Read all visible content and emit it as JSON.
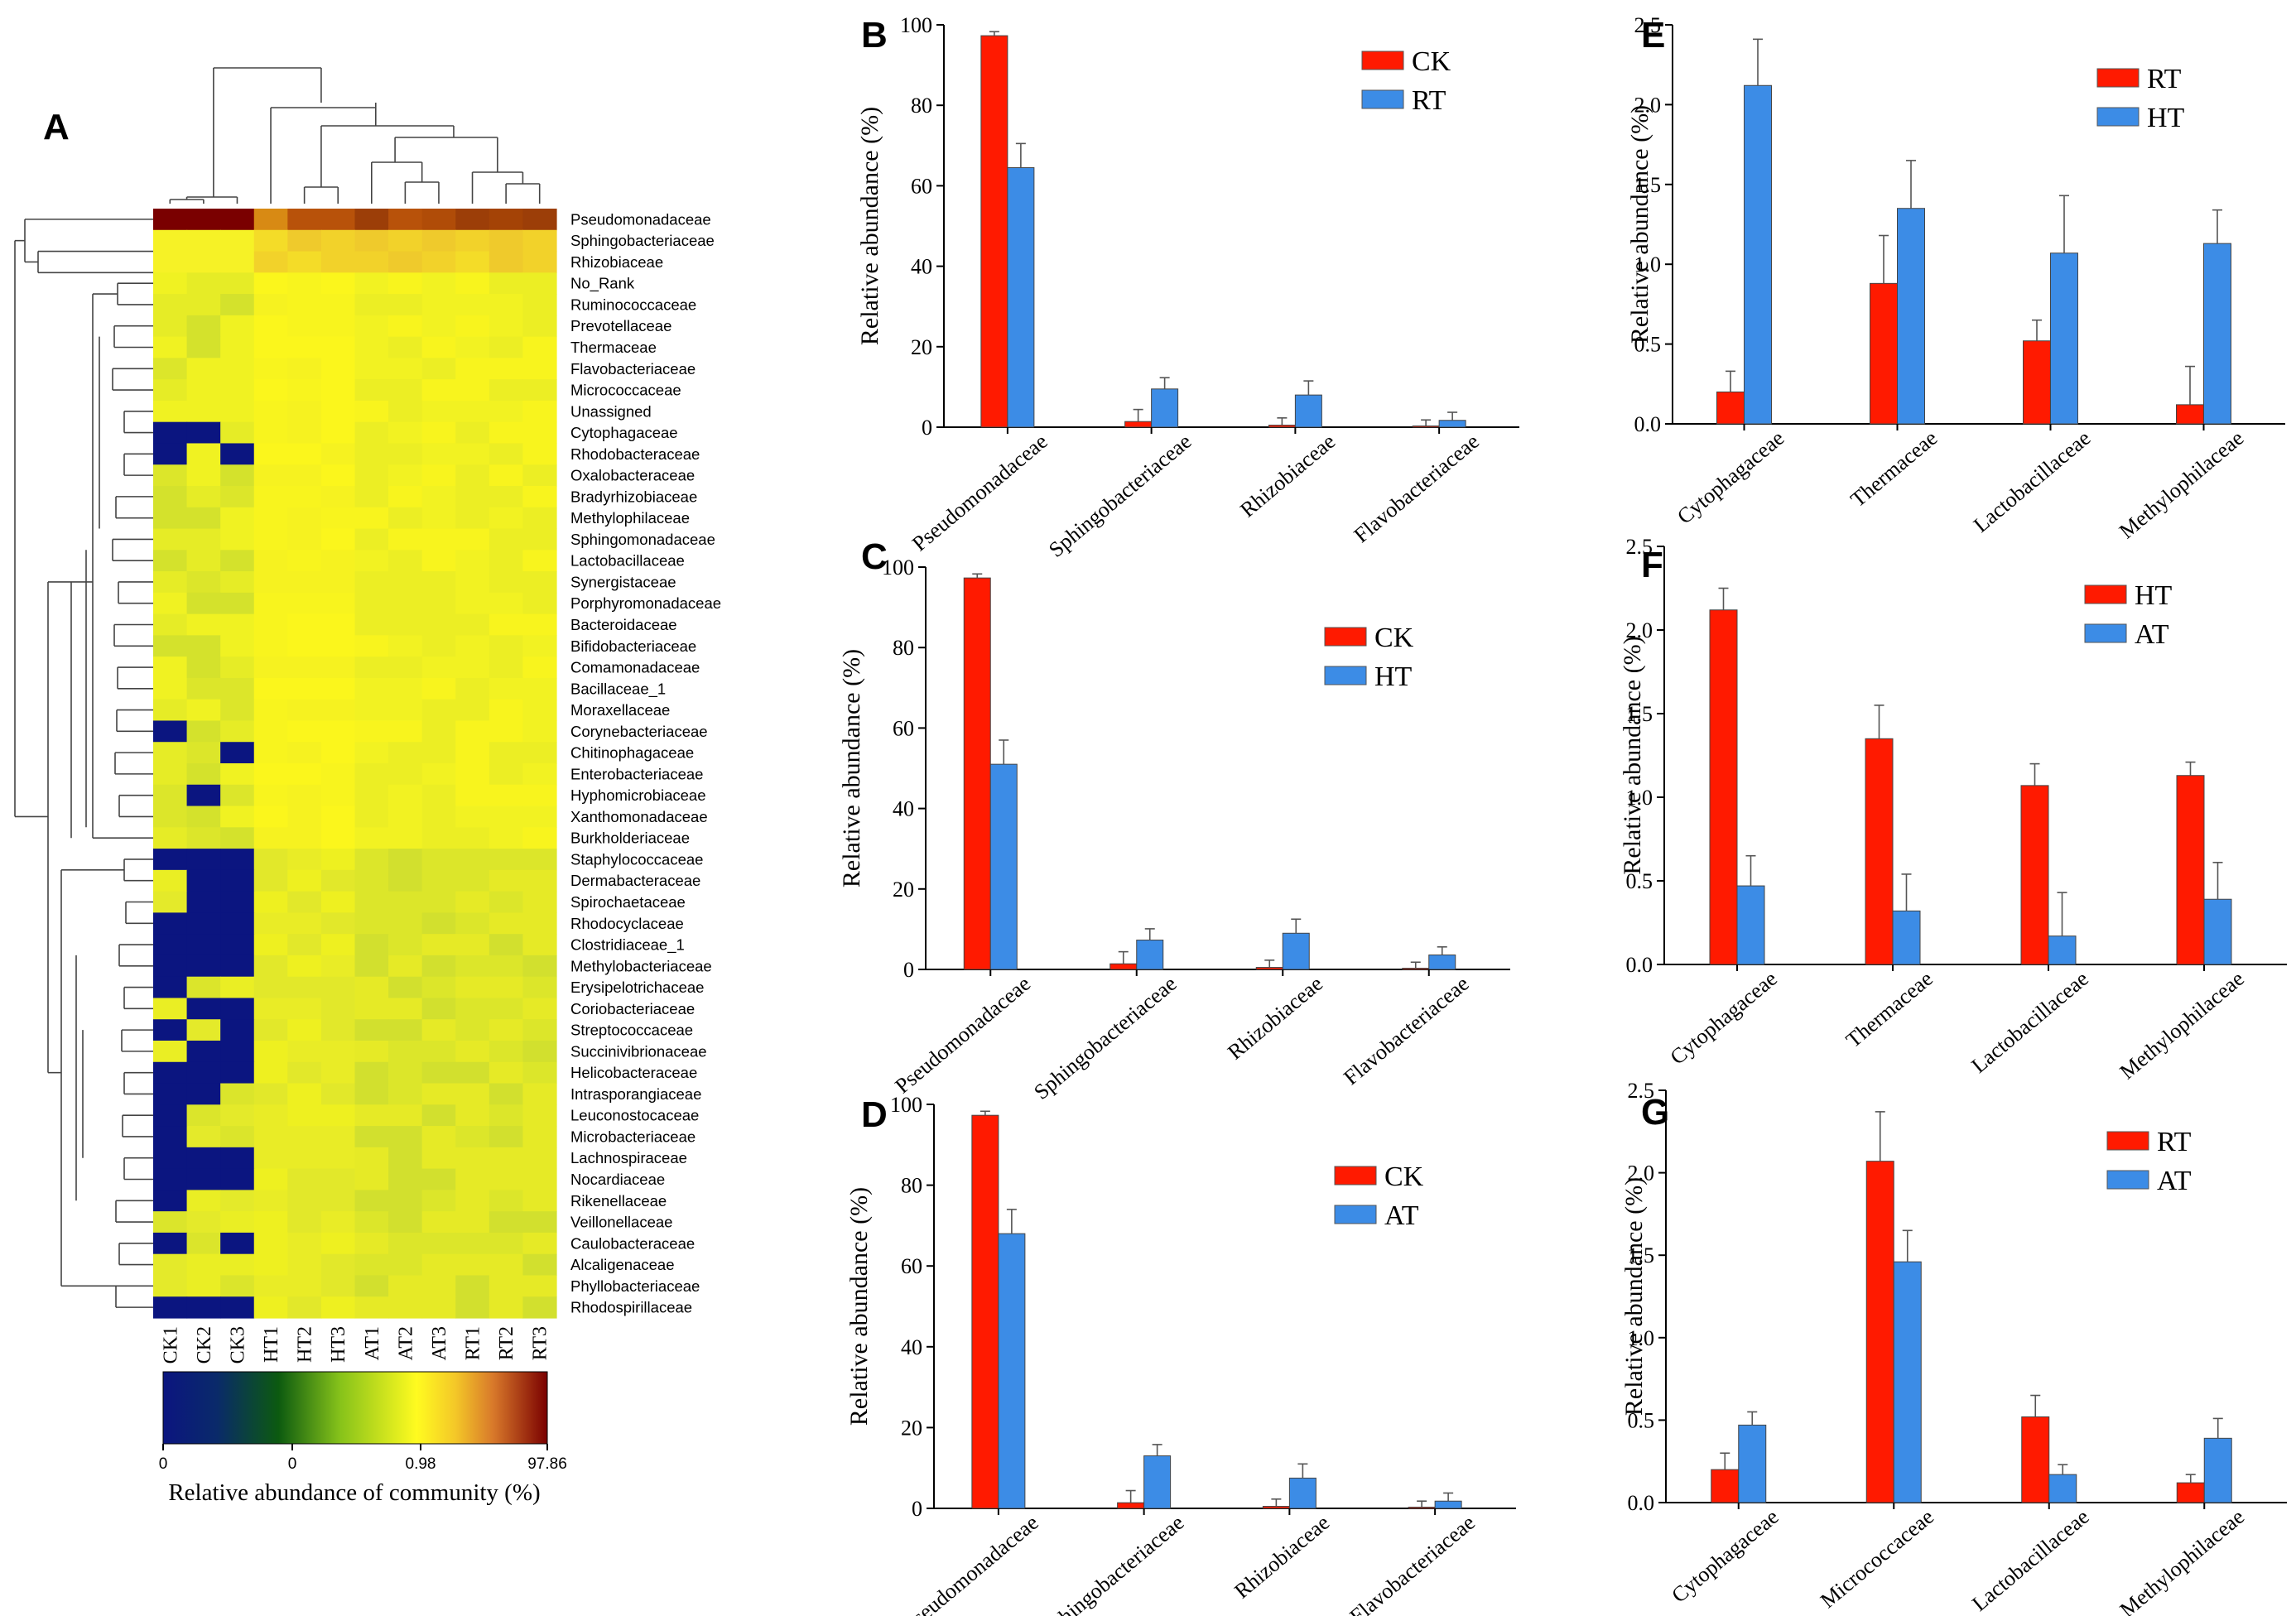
{
  "heatmap": {
    "letter": "A",
    "samples": [
      "CK1",
      "CK2",
      "CK3",
      "HT1",
      "HT2",
      "HT3",
      "AT1",
      "AT2",
      "AT3",
      "RT1",
      "RT2",
      "RT3"
    ],
    "families": [
      "Pseudomonadaceae",
      "Sphingobacteriaceae",
      "Rhizobiaceae",
      "No_Rank",
      "Ruminococcaceae",
      "Prevotellaceae",
      "Thermaceae",
      "Flavobacteriaceae",
      "Micrococcaceae",
      "Unassigned",
      "Cytophagaceae",
      "Rhodobacteraceae",
      "Oxalobacteraceae",
      "Bradyrhizobiaceae",
      "Methylophilaceae",
      "Sphingomonadaceae",
      "Lactobacillaceae",
      "Synergistaceae",
      "Porphyromonadaceae",
      "Bacteroidaceae",
      "Bifidobacteriaceae",
      "Comamonadaceae",
      "Bacillaceae_1",
      "Moraxellaceae",
      "Corynebacteriaceae",
      "Chitinophagaceae",
      "Enterobacteriaceae",
      "Hyphomicrobiaceae",
      "Xanthomonadaceae",
      "Burkholderiaceae",
      "Staphylococcaceae",
      "Dermabacteraceae",
      "Spirochaetaceae",
      "Rhodocyclaceae",
      "Clostridiaceae_1",
      "Methylobacteriaceae",
      "Erysipelotrichaceae",
      "Coriobacteriaceae",
      "Streptococcaceae",
      "Succinivibrionaceae",
      "Helicobacteraceae",
      "Intrasporangiaceae",
      "Leuconostocaceae",
      "Microbacteriaceae",
      "Lachnospiraceae",
      "Nocardiaceae",
      "Rikenellaceae",
      "Veillonellaceae",
      "Caulobacteraceae",
      "Alcaligenaceae",
      "Phyllobacteriaceae",
      "Rhodospirillaceae"
    ],
    "colorbar": {
      "ticks": [
        "0",
        "0",
        "0.98",
        "97.86"
      ],
      "title": "Relative abundance of community (%)"
    },
    "blue_cells": [
      [
        10,
        0
      ],
      [
        10,
        1
      ],
      [
        11,
        0
      ],
      [
        11,
        2
      ],
      [
        24,
        0
      ],
      [
        25,
        2
      ],
      [
        27,
        1
      ],
      [
        30,
        0
      ],
      [
        30,
        1
      ],
      [
        30,
        2
      ],
      [
        31,
        1
      ],
      [
        31,
        2
      ],
      [
        32,
        1
      ],
      [
        32,
        2
      ],
      [
        33,
        0
      ],
      [
        33,
        1
      ],
      [
        33,
        2
      ],
      [
        34,
        0
      ],
      [
        34,
        1
      ],
      [
        34,
        2
      ],
      [
        35,
        0
      ],
      [
        35,
        1
      ],
      [
        35,
        2
      ],
      [
        36,
        0
      ],
      [
        37,
        1
      ],
      [
        37,
        2
      ],
      [
        38,
        0
      ],
      [
        38,
        2
      ],
      [
        39,
        1
      ],
      [
        39,
        2
      ],
      [
        40,
        0
      ],
      [
        40,
        1
      ],
      [
        40,
        2
      ],
      [
        41,
        0
      ],
      [
        41,
        1
      ],
      [
        42,
        0
      ],
      [
        43,
        0
      ],
      [
        44,
        0
      ],
      [
        44,
        1
      ],
      [
        44,
        2
      ],
      [
        45,
        0
      ],
      [
        45,
        1
      ],
      [
        45,
        2
      ],
      [
        46,
        0
      ],
      [
        48,
        0
      ],
      [
        48,
        2
      ],
      [
        51,
        0
      ],
      [
        51,
        1
      ],
      [
        51,
        2
      ]
    ],
    "colors": {
      "low": "#0b1580",
      "mid": "#f4f020",
      "high": "#7a0000"
    }
  },
  "chart_data": [
    {
      "panel": "B",
      "type": "bar",
      "ylabel": "Relative abundance (%)",
      "ylim": [
        0,
        100
      ],
      "yticks": [
        "0",
        "20",
        "40",
        "60",
        "80",
        "100"
      ],
      "categories": [
        "Pseudomonadaceae",
        "Sphingobacteriaceae",
        "Rhizobiaceae",
        "Flavobacteriaceae"
      ],
      "series": [
        {
          "name": "CK",
          "color": "#ff1a00",
          "values": [
            97.3,
            1.4,
            0.5,
            0.3
          ],
          "errors": [
            1.0,
            3.0,
            1.8,
            1.5
          ]
        },
        {
          "name": "RT",
          "color": "#3c8ce6",
          "values": [
            64.5,
            9.5,
            8.0,
            1.7
          ],
          "errors": [
            6.0,
            2.8,
            3.5,
            2.0
          ]
        }
      ]
    },
    {
      "panel": "C",
      "type": "bar",
      "ylabel": "Relative abundance (%)",
      "ylim": [
        0,
        100
      ],
      "yticks": [
        "0",
        "20",
        "40",
        "60",
        "80",
        "100"
      ],
      "categories": [
        "Pseudomonadaceae",
        "Sphingobacteriaceae",
        "Rhizobiaceae",
        "Flavobacteriaceae"
      ],
      "series": [
        {
          "name": "CK",
          "color": "#ff1a00",
          "values": [
            97.3,
            1.4,
            0.5,
            0.3
          ],
          "errors": [
            1.0,
            3.0,
            1.8,
            1.5
          ]
        },
        {
          "name": "HT",
          "color": "#3c8ce6",
          "values": [
            51.0,
            7.3,
            9.0,
            3.6
          ],
          "errors": [
            6.0,
            2.8,
            3.5,
            2.0
          ]
        }
      ]
    },
    {
      "panel": "D",
      "type": "bar",
      "ylabel": "Relative abundance (%)",
      "ylim": [
        0,
        100
      ],
      "yticks": [
        "0",
        "20",
        "40",
        "60",
        "80",
        "100"
      ],
      "categories": [
        "Pseudomonadaceae",
        "Sphingobacteriaceae",
        "Rhizobiaceae",
        "Flavobacteriaceae"
      ],
      "series": [
        {
          "name": "CK",
          "color": "#ff1a00",
          "values": [
            97.3,
            1.4,
            0.5,
            0.3
          ],
          "errors": [
            1.0,
            3.0,
            1.8,
            1.5
          ]
        },
        {
          "name": "AT",
          "color": "#3c8ce6",
          "values": [
            68.0,
            13.0,
            7.5,
            1.8
          ],
          "errors": [
            6.0,
            2.8,
            3.5,
            2.0
          ]
        }
      ]
    },
    {
      "panel": "E",
      "type": "bar",
      "ylabel": "Relative abundance (%)",
      "ylim": [
        0,
        2.5
      ],
      "yticks": [
        "0.0",
        "0.5",
        "1.0",
        "1.5",
        "2.0",
        "2.5"
      ],
      "categories": [
        "Cytophagaceae",
        "Thermaceae",
        "Lactobacillaceae",
        "Methylophilaceae"
      ],
      "series": [
        {
          "name": "RT",
          "color": "#ff1a00",
          "values": [
            0.2,
            0.88,
            0.52,
            0.12
          ],
          "errors": [
            0.13,
            0.3,
            0.13,
            0.24
          ]
        },
        {
          "name": "HT",
          "color": "#3c8ce6",
          "values": [
            2.12,
            1.35,
            1.07,
            1.13
          ],
          "errors": [
            0.29,
            0.3,
            0.36,
            0.21
          ]
        }
      ]
    },
    {
      "panel": "F",
      "type": "bar",
      "ylabel": "Relative abundance (%)",
      "ylim": [
        0,
        2.5
      ],
      "yticks": [
        "0.0",
        "0.5",
        "1.0",
        "1.5",
        "2.0",
        "2.5"
      ],
      "categories": [
        "Cytophagaceae",
        "Thermaceae",
        "Lactobacillaceae",
        "Methylophilaceae"
      ],
      "series": [
        {
          "name": "HT",
          "color": "#ff1a00",
          "values": [
            2.12,
            1.35,
            1.07,
            1.13
          ],
          "errors": [
            0.13,
            0.2,
            0.13,
            0.08
          ]
        },
        {
          "name": "AT",
          "color": "#3c8ce6",
          "values": [
            0.47,
            0.32,
            0.17,
            0.39
          ],
          "errors": [
            0.18,
            0.22,
            0.26,
            0.22
          ]
        }
      ]
    },
    {
      "panel": "G",
      "type": "bar",
      "ylabel": "Relative abundance (%)",
      "ylim": [
        0,
        2.5
      ],
      "yticks": [
        "0.0",
        "0.5",
        "1.0",
        "1.5",
        "2.0",
        "2.5"
      ],
      "categories": [
        "Cytophagaceae",
        "Micrococcaceae",
        "Lactobacillaceae",
        "Methylophilaceae"
      ],
      "series": [
        {
          "name": "RT",
          "color": "#ff1a00",
          "values": [
            0.2,
            2.07,
            0.52,
            0.12
          ],
          "errors": [
            0.1,
            0.3,
            0.13,
            0.05
          ]
        },
        {
          "name": "AT",
          "color": "#3c8ce6",
          "values": [
            0.47,
            1.46,
            0.17,
            0.39
          ],
          "errors": [
            0.08,
            0.19,
            0.06,
            0.12
          ]
        }
      ]
    }
  ]
}
